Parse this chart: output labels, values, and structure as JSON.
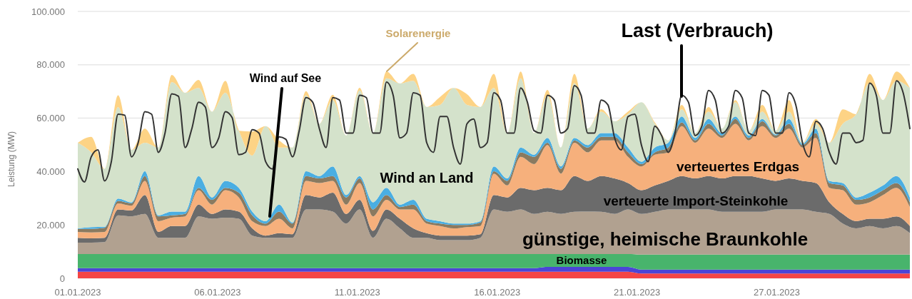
{
  "chart_data": {
    "type": "area",
    "stacked": true,
    "ylabel": "Leistung (MW)",
    "grid": "y",
    "xlim": [
      "2023-01-01T00:00",
      "2023-02-01T00:00"
    ],
    "xticks": [
      {
        "value": "2023-01-01T00:00",
        "label": "01.01.2023"
      },
      {
        "value": "2023-01-06T05:00",
        "label": "06.01.2023"
      },
      {
        "value": "2023-01-11T10:00",
        "label": "11.01.2023"
      },
      {
        "value": "2023-01-16T15:00",
        "label": "16.01.2023"
      },
      {
        "value": "2023-01-21T20:00",
        "label": "21.01.2023"
      },
      {
        "value": "2023-01-27T01:00",
        "label": "27.01.2023"
      }
    ],
    "ylim": [
      0,
      100000
    ],
    "yticks": [
      0,
      {
        "value": 20000,
        "label": "20.000"
      },
      {
        "value": 40000,
        "label": "40.000"
      },
      {
        "value": 60000,
        "label": "60.000"
      },
      {
        "value": 80000,
        "label": "80.000"
      },
      {
        "value": 100000,
        "label": "100.000"
      }
    ],
    "x": [
      "2023-01-01T00:00",
      "2023-01-01T12:00",
      "2023-01-02T00:00",
      "2023-01-02T12:00",
      "2023-01-03T00:00",
      "2023-01-03T12:00",
      "2023-01-04T00:00",
      "2023-01-04T12:00",
      "2023-01-05T00:00",
      "2023-01-05T12:00",
      "2023-01-06T00:00",
      "2023-01-06T12:00",
      "2023-01-07T00:00",
      "2023-01-07T12:00",
      "2023-01-08T00:00",
      "2023-01-08T12:00",
      "2023-01-09T00:00",
      "2023-01-09T12:00",
      "2023-01-10T00:00",
      "2023-01-10T12:00",
      "2023-01-11T00:00",
      "2023-01-11T12:00",
      "2023-01-12T00:00",
      "2023-01-12T12:00",
      "2023-01-13T00:00",
      "2023-01-13T12:00",
      "2023-01-14T00:00",
      "2023-01-14T12:00",
      "2023-01-15T00:00",
      "2023-01-15T12:00",
      "2023-01-16T00:00",
      "2023-01-16T12:00",
      "2023-01-17T00:00",
      "2023-01-17T12:00",
      "2023-01-18T00:00",
      "2023-01-18T12:00",
      "2023-01-19T00:00",
      "2023-01-19T12:00",
      "2023-01-20T00:00",
      "2023-01-20T12:00",
      "2023-01-21T00:00",
      "2023-01-21T12:00",
      "2023-01-22T00:00",
      "2023-01-22T12:00",
      "2023-01-23T00:00",
      "2023-01-23T12:00",
      "2023-01-24T00:00",
      "2023-01-24T12:00",
      "2023-01-25T00:00",
      "2023-01-25T12:00",
      "2023-01-26T00:00",
      "2023-01-26T12:00",
      "2023-01-27T00:00",
      "2023-01-27T12:00",
      "2023-01-28T00:00",
      "2023-01-28T12:00",
      "2023-01-29T00:00",
      "2023-01-29T12:00",
      "2023-01-30T00:00",
      "2023-01-30T12:00",
      "2023-01-31T00:00",
      "2023-01-31T12:00",
      "2023-02-01T00:00"
    ],
    "series": [
      {
        "color": "#f44545",
        "values": [
          2500,
          2500,
          2500,
          2500,
          2500,
          2500,
          2500,
          2500,
          2500,
          2500,
          2500,
          2500,
          2500,
          2500,
          2500,
          2500,
          2500,
          2500,
          2500,
          2500,
          2500,
          2500,
          2500,
          2500,
          2500,
          2500,
          2500,
          2500,
          2500,
          2500,
          2500,
          2500,
          2500,
          2500,
          2500,
          2500,
          2500,
          2500,
          2500,
          2500,
          2500,
          2500,
          1800,
          1800,
          1800,
          1800,
          1800,
          1800,
          1800,
          1800,
          1800,
          1800,
          1800,
          1800,
          1800,
          1800,
          1800,
          1800,
          1800,
          1800,
          1800,
          1800,
          1800
        ]
      },
      {
        "color": "#4b45d6",
        "values": [
          1300,
          1300,
          1300,
          1300,
          1300,
          1300,
          1300,
          1300,
          1300,
          1300,
          1300,
          1300,
          1300,
          1300,
          1300,
          1300,
          1300,
          1300,
          1300,
          1300,
          1300,
          1300,
          1300,
          1300,
          1300,
          1300,
          1300,
          1300,
          1300,
          1300,
          1300,
          1300,
          1300,
          1300,
          1300,
          1800,
          1800,
          1800,
          1800,
          1800,
          1800,
          1800,
          1500,
          1500,
          1500,
          1500,
          1500,
          1500,
          1500,
          1500,
          1500,
          1500,
          1500,
          1500,
          1500,
          1500,
          1500,
          1500,
          1500,
          1500,
          1500,
          1500,
          1500
        ]
      },
      {
        "name": "Biomasse",
        "color": "#48b46c",
        "values": [
          5300,
          5300,
          5300,
          5300,
          5300,
          5300,
          5300,
          5300,
          5300,
          5300,
          5300,
          5300,
          5300,
          5300,
          5300,
          5300,
          5300,
          5300,
          5300,
          5300,
          5300,
          5300,
          5300,
          5300,
          5300,
          5300,
          5300,
          5300,
          5300,
          5300,
          5300,
          5300,
          5300,
          5300,
          5300,
          4800,
          4800,
          4800,
          4800,
          4800,
          4800,
          4800,
          5600,
          5600,
          5600,
          5600,
          5600,
          5600,
          5600,
          5600,
          5600,
          5600,
          5600,
          5600,
          5600,
          5600,
          5600,
          5600,
          5600,
          5600,
          5600,
          5600,
          5600
        ]
      },
      {
        "name": "günstige, heimische Braunkohle",
        "color": "#b1a190",
        "values": [
          4300,
          4300,
          4500,
          14500,
          14100,
          15000,
          6100,
          6100,
          6100,
          14100,
          13200,
          13600,
          13200,
          6900,
          6100,
          6100,
          6100,
          16700,
          16700,
          15900,
          11400,
          16700,
          6100,
          13200,
          9600,
          6100,
          6100,
          5200,
          5200,
          5200,
          6100,
          16700,
          15800,
          16700,
          15000,
          15800,
          15000,
          15800,
          15900,
          15800,
          15000,
          16700,
          15200,
          16000,
          16900,
          16900,
          16900,
          16900,
          16000,
          16000,
          16000,
          16000,
          16900,
          16900,
          16900,
          16000,
          15200,
          11600,
          9800,
          10700,
          9800,
          10700,
          8000
        ]
      },
      {
        "name": "verteuerte Import-Steinkohle",
        "color": "#6b6b6b",
        "values": [
          1800,
          1600,
          1600,
          2200,
          2200,
          7100,
          2200,
          4400,
          4400,
          4400,
          1800,
          3100,
          2700,
          2700,
          800,
          1700,
          1300,
          5400,
          4500,
          7100,
          3600,
          3600,
          2600,
          3500,
          3600,
          3500,
          1700,
          1700,
          1700,
          1700,
          1300,
          5400,
          5400,
          8100,
          8900,
          9000,
          8900,
          13400,
          11500,
          13400,
          13300,
          9900,
          8900,
          9900,
          10700,
          12500,
          11600,
          12500,
          12500,
          13400,
          13400,
          12500,
          10700,
          11600,
          10700,
          10800,
          4400,
          3600,
          2700,
          2700,
          3600,
          3600,
          2700
        ]
      },
      {
        "name": "verteuertes Erdgas",
        "color": "#f6b07c",
        "values": [
          2200,
          2200,
          2200,
          2300,
          1800,
          5300,
          4000,
          3100,
          3600,
          5400,
          3500,
          7200,
          5300,
          2700,
          3600,
          5400,
          2200,
          5300,
          5400,
          4400,
          3500,
          6300,
          5400,
          3600,
          3500,
          7100,
          3600,
          3600,
          2700,
          3200,
          3100,
          8000,
          4500,
          11600,
          9800,
          16000,
          6200,
          12500,
          10700,
          13400,
          14300,
          9800,
          8900,
          11500,
          10700,
          18700,
          13400,
          17800,
          15200,
          19600,
          13400,
          19600,
          16100,
          18700,
          12500,
          16900,
          5400,
          8900,
          6200,
          6200,
          8900,
          10700,
          7100
        ]
      },
      {
        "color": "#8a7a60",
        "values": [
          1100,
          1300,
          1500,
          900,
          900,
          1800,
          1800,
          900,
          900,
          900,
          1800,
          900,
          1800,
          2200,
          900,
          2700,
          1800,
          1800,
          1700,
          1800,
          2700,
          1700,
          2600,
          1800,
          900,
          1800,
          900,
          900,
          1300,
          800,
          1300,
          900,
          1700,
          1700,
          2700,
          900,
          1800,
          900,
          1800,
          1300,
          1300,
          1700,
          900,
          900,
          1800,
          1400,
          900,
          1800,
          900,
          1800,
          900,
          1800,
          900,
          1800,
          900,
          1800,
          1800,
          1800,
          1800,
          1800,
          1800,
          1800,
          1800
        ]
      },
      {
        "name": "Wind auf See",
        "color": "#4aaee2",
        "values": [
          200,
          700,
          400,
          900,
          400,
          1800,
          400,
          1400,
          900,
          4400,
          900,
          2600,
          1800,
          1400,
          900,
          2600,
          400,
          1800,
          900,
          3600,
          900,
          900,
          2700,
          2700,
          900,
          1800,
          900,
          900,
          500,
          500,
          500,
          1800,
          900,
          1800,
          800,
          1800,
          900,
          900,
          900,
          1400,
          1400,
          1800,
          900,
          1800,
          1800,
          2200,
          900,
          1800,
          900,
          900,
          900,
          900,
          400,
          1800,
          500,
          1700,
          800,
          900,
          900,
          1800,
          1800,
          2600,
          1800
        ]
      },
      {
        "name": "Wind an Land",
        "color": "#d4e2cb",
        "values": [
          32100,
          28000,
          21700,
          34300,
          19600,
          10700,
          25400,
          48500,
          44500,
          33000,
          32100,
          33000,
          21400,
          21000,
          35600,
          21400,
          28100,
          28500,
          19600,
          24900,
          22300,
          32100,
          25900,
          41000,
          45400,
          44600,
          41900,
          43600,
          50800,
          44500,
          42800,
          29400,
          17000,
          25900,
          8100,
          16000,
          7100,
          20500,
          6200,
          8000,
          4400,
          12500,
          22300,
          8900,
          900,
          2700,
          1800,
          2700,
          1700,
          5400,
          1800,
          2700,
          1400,
          2700,
          400,
          1800,
          14300,
          22200,
          31200,
          41000,
          32000,
          35700,
          41000
        ]
      },
      {
        "name": "Solarenergie",
        "color": "#fdd385",
        "values": [
          0,
          5800,
          0,
          4400,
          0,
          5300,
          0,
          2700,
          0,
          3000,
          0,
          4500,
          0,
          9000,
          0,
          2700,
          0,
          1500,
          0,
          2000,
          0,
          1000,
          0,
          2600,
          0,
          2600,
          0,
          3000,
          0,
          4000,
          0,
          5300,
          0,
          2600,
          0,
          2000,
          0,
          3500,
          0,
          1000,
          0,
          1000,
          0,
          500,
          0,
          1700,
          0,
          1800,
          0,
          800,
          0,
          2600,
          0,
          4400,
          0,
          1800,
          0,
          5400,
          0,
          3500,
          0,
          3500,
          0
        ]
      },
      {
        "name": "Last (Verbrauch)",
        "type": "line",
        "color": "#333333",
        "x": [
          "2023-01-01T00:00",
          "2023-01-01T06:00",
          "2023-01-01T12:00",
          "2023-01-01T18:00",
          "2023-01-02T00:00",
          "2023-01-02T06:00",
          "2023-01-02T12:00",
          "2023-01-02T18:00",
          "2023-01-03T00:00",
          "2023-01-03T06:00",
          "2023-01-03T12:00",
          "2023-01-03T18:00",
          "2023-01-04T00:00",
          "2023-01-04T06:00",
          "2023-01-04T12:00",
          "2023-01-04T18:00",
          "2023-01-05T00:00",
          "2023-01-05T06:00",
          "2023-01-05T12:00",
          "2023-01-05T18:00",
          "2023-01-06T00:00",
          "2023-01-06T06:00",
          "2023-01-06T12:00",
          "2023-01-06T18:00",
          "2023-01-07T00:00",
          "2023-01-07T06:00",
          "2023-01-07T12:00",
          "2023-01-07T18:00",
          "2023-01-08T00:00",
          "2023-01-08T06:00",
          "2023-01-08T12:00",
          "2023-01-08T18:00",
          "2023-01-09T00:00",
          "2023-01-09T06:00",
          "2023-01-09T12:00",
          "2023-01-09T18:00",
          "2023-01-10T00:00",
          "2023-01-10T06:00",
          "2023-01-10T12:00",
          "2023-01-10T18:00",
          "2023-01-11T00:00",
          "2023-01-11T06:00",
          "2023-01-11T12:00",
          "2023-01-11T18:00",
          "2023-01-12T00:00",
          "2023-01-12T06:00",
          "2023-01-12T12:00",
          "2023-01-12T18:00",
          "2023-01-13T00:00",
          "2023-01-13T06:00",
          "2023-01-13T12:00",
          "2023-01-13T18:00",
          "2023-01-14T00:00",
          "2023-01-14T06:00",
          "2023-01-14T12:00",
          "2023-01-14T18:00",
          "2023-01-15T00:00",
          "2023-01-15T06:00",
          "2023-01-15T12:00",
          "2023-01-15T18:00",
          "2023-01-16T00:00",
          "2023-01-16T06:00",
          "2023-01-16T12:00",
          "2023-01-16T18:00",
          "2023-01-17T00:00",
          "2023-01-17T06:00",
          "2023-01-17T12:00",
          "2023-01-17T18:00",
          "2023-01-18T00:00",
          "2023-01-18T06:00",
          "2023-01-18T12:00",
          "2023-01-18T18:00",
          "2023-01-19T00:00",
          "2023-01-19T06:00",
          "2023-01-19T12:00",
          "2023-01-19T18:00",
          "2023-01-20T00:00",
          "2023-01-20T06:00",
          "2023-01-20T12:00",
          "2023-01-20T18:00",
          "2023-01-21T00:00",
          "2023-01-21T06:00",
          "2023-01-21T12:00",
          "2023-01-21T18:00",
          "2023-01-22T00:00",
          "2023-01-22T06:00",
          "2023-01-22T12:00",
          "2023-01-22T18:00",
          "2023-01-23T00:00",
          "2023-01-23T06:00",
          "2023-01-23T12:00",
          "2023-01-23T18:00",
          "2023-01-24T00:00",
          "2023-01-24T06:00",
          "2023-01-24T12:00",
          "2023-01-24T18:00",
          "2023-01-25T00:00",
          "2023-01-25T06:00",
          "2023-01-25T12:00",
          "2023-01-25T18:00",
          "2023-01-26T00:00",
          "2023-01-26T06:00",
          "2023-01-26T12:00",
          "2023-01-26T18:00",
          "2023-01-27T00:00",
          "2023-01-27T06:00",
          "2023-01-27T12:00",
          "2023-01-27T18:00",
          "2023-01-28T00:00",
          "2023-01-28T06:00",
          "2023-01-28T12:00",
          "2023-01-28T18:00",
          "2023-01-29T00:00",
          "2023-01-29T06:00",
          "2023-01-29T12:00",
          "2023-01-29T18:00",
          "2023-01-30T00:00",
          "2023-01-30T06:00",
          "2023-01-30T12:00",
          "2023-01-30T18:00",
          "2023-01-31T00:00",
          "2023-01-31T06:00",
          "2023-01-31T12:00",
          "2023-01-31T18:00",
          "2023-02-01T00:00"
        ],
        "values": [
          41000,
          36100,
          45500,
          48100,
          36500,
          43700,
          61500,
          61100,
          45500,
          50800,
          62400,
          61500,
          47200,
          54400,
          69100,
          68200,
          49000,
          56100,
          66000,
          64200,
          49000,
          52600,
          62400,
          60200,
          46300,
          47200,
          55700,
          54400,
          43700,
          41000,
          53000,
          52100,
          45500,
          55300,
          67700,
          66000,
          56100,
          49000,
          67700,
          66800,
          54400,
          54400,
          68600,
          67700,
          54400,
          54400,
          73500,
          68600,
          52600,
          54400,
          69500,
          68600,
          50800,
          47200,
          60600,
          60600,
          49000,
          42800,
          57900,
          59700,
          49000,
          50800,
          69500,
          66800,
          54400,
          54400,
          71300,
          66000,
          55300,
          54400,
          68600,
          66800,
          54400,
          56100,
          72200,
          68600,
          54400,
          54400,
          66800,
          65000,
          52600,
          48100,
          60600,
          61500,
          49900,
          43700,
          57000,
          53500,
          47200,
          54400,
          68600,
          66000,
          53500,
          57000,
          70400,
          66800,
          54400,
          57000,
          70400,
          67700,
          54400,
          53500,
          70400,
          68600,
          54400,
          54400,
          69500,
          65000,
          50800,
          45500,
          58800,
          56100,
          47200,
          42800,
          54400,
          54400,
          50800,
          51700,
          73100,
          68600,
          54400,
          54400,
          74000,
          69500,
          56100
        ]
      }
    ]
  }
}
